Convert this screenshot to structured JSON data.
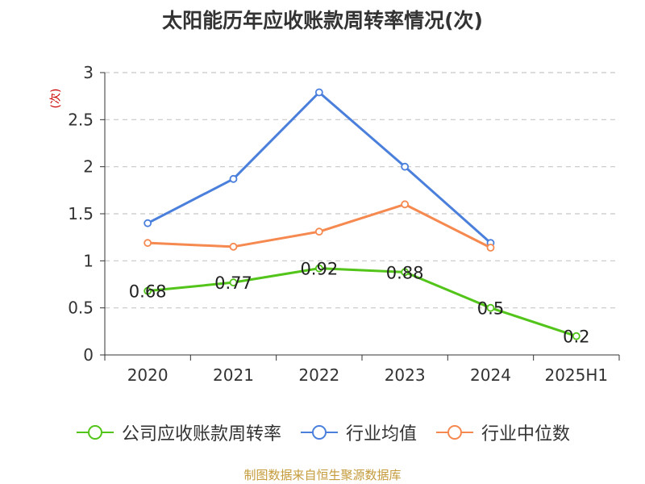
{
  "title": "太阳能历年应收账款周转率情况(次)",
  "unit_label": "(次)",
  "source": "制图数据来自恒生聚源数据库",
  "colors": {
    "company": "#52c41a",
    "industry_avg": "#4a7fdc",
    "industry_median": "#f5894f",
    "grid": "#c8c8c8",
    "axis": "#333333"
  },
  "chart_data": {
    "type": "line",
    "title": "太阳能历年应收账款周转率情况(次)",
    "xlabel": "",
    "ylabel": "(次)",
    "categories": [
      "2020",
      "2021",
      "2022",
      "2023",
      "2024",
      "2025H1"
    ],
    "ylim": [
      0,
      3
    ],
    "yticks": [
      "0",
      "0.5",
      "1",
      "1.5",
      "2",
      "2.5",
      "3"
    ],
    "grid": true,
    "legend": "bottom",
    "series": [
      {
        "name": "公司应收账款周转率",
        "values": [
          0.68,
          0.77,
          0.92,
          0.88,
          0.5,
          0.2
        ],
        "labels": [
          "0.68",
          "0.77",
          "0.92",
          "0.88",
          "0.5",
          "0.2"
        ]
      },
      {
        "name": "行业均值",
        "values": [
          1.4,
          1.87,
          2.79,
          2.0,
          1.19,
          null
        ]
      },
      {
        "name": "行业中位数",
        "values": [
          1.19,
          1.15,
          1.31,
          1.6,
          1.14,
          null
        ]
      }
    ]
  }
}
